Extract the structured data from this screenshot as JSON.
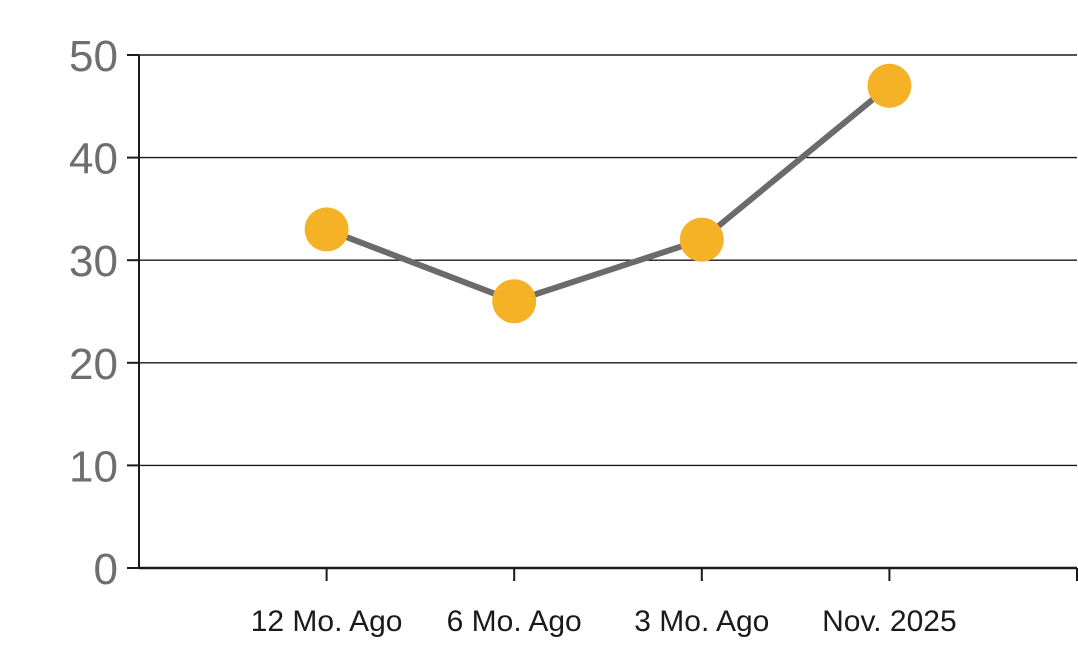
{
  "chart_data": {
    "type": "line",
    "categories": [
      "12 Mo. Ago",
      "6 Mo. Ago",
      "3 Mo. Ago",
      "Nov. 2025"
    ],
    "values": [
      33,
      26,
      32,
      47
    ],
    "title": "",
    "xlabel": "",
    "ylabel": "",
    "ylim": [
      0,
      50
    ],
    "yticks": [
      0,
      10,
      20,
      30,
      40,
      50
    ],
    "grid": "horizontal",
    "legend": "none",
    "colors": {
      "marker": "#F6B226",
      "line": "#6B6B6B",
      "axis": "#1A1A1A",
      "gridline": "#1A1A1A",
      "ytick_label": "#6E6E6E",
      "xtick_label": "#1A1A1A",
      "background": "#FFFFFF"
    }
  }
}
